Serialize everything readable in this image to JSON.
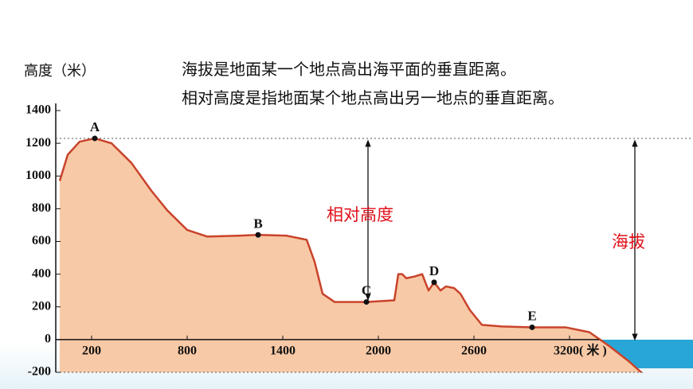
{
  "chart_data": {
    "type": "area",
    "notes": [
      "海拔是地面某一个地点高出海平面的垂直距离。",
      "相对高度是指地面某个地点高出另一地点的垂直距离。"
    ],
    "y_label": "高度（米）",
    "x": [
      0,
      50,
      125,
      220,
      325,
      450,
      575,
      675,
      800,
      925,
      1125,
      1245,
      1425,
      1550,
      1600,
      1650,
      1725,
      1925,
      2100,
      2125,
      2150,
      2175,
      2225,
      2275,
      2315,
      2350,
      2390,
      2425,
      2475,
      2515,
      2575,
      2650,
      2775,
      2965,
      3175,
      3325,
      3450,
      3575,
      3650
    ],
    "values": [
      970,
      1130,
      1210,
      1230,
      1200,
      1080,
      910,
      790,
      670,
      630,
      635,
      640,
      635,
      610,
      475,
      280,
      230,
      230,
      240,
      400,
      400,
      375,
      385,
      400,
      300,
      350,
      300,
      325,
      315,
      280,
      180,
      90,
      80,
      75,
      75,
      45,
      -40,
      -135,
      -200
    ],
    "fill_color": "#f8c9a6",
    "line_color": "#c9432b",
    "points": [
      {
        "label": "A",
        "x": 220,
        "y": 1230
      },
      {
        "label": "B",
        "x": 1245,
        "y": 640
      },
      {
        "label": "C",
        "x": 1925,
        "y": 230
      },
      {
        "label": "D",
        "x": 2350,
        "y": 350
      },
      {
        "label": "E",
        "x": 2965,
        "y": 75
      }
    ],
    "annotations": [
      "相对高度",
      "海拔"
    ],
    "xlim": [
      0,
      3650
    ],
    "ylim": [
      -200,
      1400
    ],
    "xticks": [
      200,
      800,
      1400,
      2000,
      2600,
      {
        "value": 3200,
        "label": "3200( 米 )"
      }
    ],
    "yticks": [
      -200,
      0,
      200,
      400,
      600,
      800,
      1000,
      1200,
      1400
    ]
  }
}
